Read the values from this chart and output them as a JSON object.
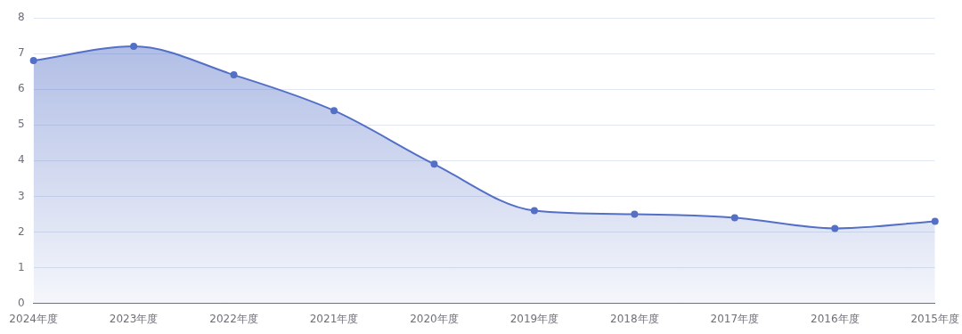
{
  "chart_data": {
    "type": "area",
    "categories": [
      "2024年度",
      "2023年度",
      "2022年度",
      "2021年度",
      "2020年度",
      "2019年度",
      "2018年度",
      "2017年度",
      "2016年度",
      "2015年度"
    ],
    "series": [
      {
        "color": "#5470c6",
        "values": [
          6.8,
          7.2,
          6.4,
          5.4,
          3.9,
          2.6,
          2.5,
          2.4,
          2.1,
          2.3
        ]
      }
    ],
    "ylim": [
      0,
      8
    ],
    "yticks": [
      0,
      1,
      2,
      3,
      4,
      5,
      6,
      7,
      8
    ],
    "grid": "y",
    "legend": false,
    "marker": "circle",
    "line_style": "solid"
  }
}
